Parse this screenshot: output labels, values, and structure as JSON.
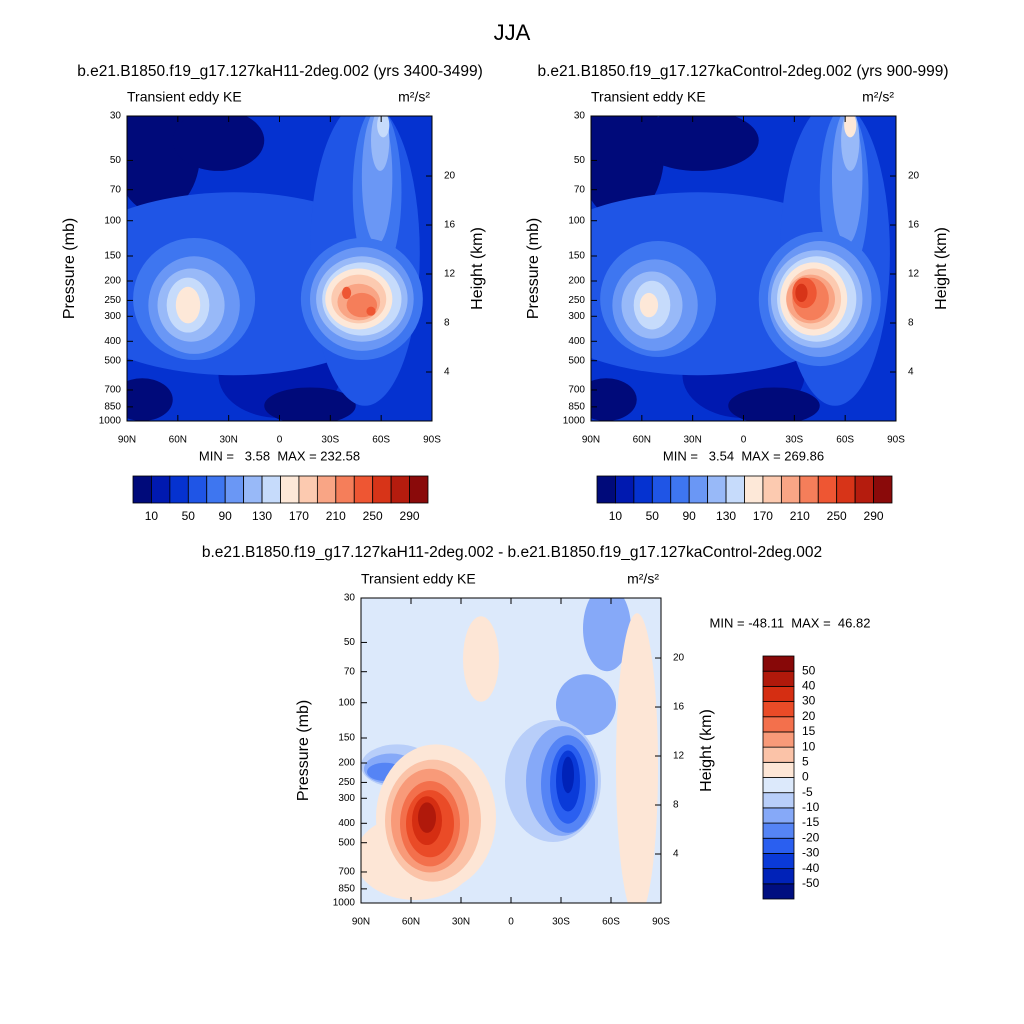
{
  "title": "JJA",
  "chart_data": [
    {
      "type": "contour",
      "title": "b.e21.B1850.f19_g17.127kaH11-2deg.002 (yrs 3400-3499)",
      "left_label": "Transient eddy KE",
      "units": "m²/s²",
      "ylabel": "Pressure (mb)",
      "y2label": "Height (km)",
      "stats": "MIN =   3.58  MAX = 232.58",
      "xlim": [
        90,
        -90
      ],
      "xticks": [
        {
          "value": 90,
          "label": "90N"
        },
        {
          "value": 60,
          "label": "60N"
        },
        {
          "value": 30,
          "label": "30N"
        },
        0,
        {
          "value": -30,
          "label": "30S"
        },
        {
          "value": -60,
          "label": "60S"
        },
        {
          "value": -90,
          "label": "90S"
        }
      ],
      "ylim": [
        1000,
        30
      ],
      "yscale": "log",
      "yticks": [
        30,
        50,
        70,
        100,
        150,
        200,
        250,
        300,
        400,
        500,
        700,
        850,
        1000
      ],
      "y2lim": [
        0,
        24.9
      ],
      "y2ticks": [
        4,
        8,
        12,
        16,
        20
      ],
      "colorbar": {
        "orientation": "horizontal",
        "lim": [
          -10,
          310
        ],
        "ticks": [
          10,
          50,
          90,
          130,
          170,
          210,
          250,
          290
        ],
        "colors": [
          "#000a7a",
          "#0019b0",
          "#0532d0",
          "#1f55e6",
          "#3e76f0",
          "#6a97f5",
          "#98b9f8",
          "#c6dbfb",
          "#fde8d8",
          "#fccab0",
          "#f9a585",
          "#f57e5a",
          "#ee5633",
          "#d73418",
          "#b51c0e",
          "#8a0a0a"
        ]
      }
    },
    {
      "type": "contour",
      "title": "b.e21.B1850.f19_g17.127kaControl-2deg.002 (yrs 900-999)",
      "left_label": "Transient eddy KE",
      "units": "m²/s²",
      "ylabel": "Pressure (mb)",
      "y2label": "Height (km)",
      "stats": "MIN =   3.54  MAX = 269.86",
      "xlim": [
        90,
        -90
      ],
      "xticks": [
        {
          "value": 90,
          "label": "90N"
        },
        {
          "value": 60,
          "label": "60N"
        },
        {
          "value": 30,
          "label": "30N"
        },
        0,
        {
          "value": -30,
          "label": "30S"
        },
        {
          "value": -60,
          "label": "60S"
        },
        {
          "value": -90,
          "label": "90S"
        }
      ],
      "ylim": [
        1000,
        30
      ],
      "yscale": "log",
      "yticks": [
        30,
        50,
        70,
        100,
        150,
        200,
        250,
        300,
        400,
        500,
        700,
        850,
        1000
      ],
      "y2lim": [
        0,
        24.9
      ],
      "y2ticks": [
        4,
        8,
        12,
        16,
        20
      ],
      "colorbar": {
        "orientation": "horizontal",
        "lim": [
          -10,
          310
        ],
        "ticks": [
          10,
          50,
          90,
          130,
          170,
          210,
          250,
          290
        ],
        "colors": [
          "#000a7a",
          "#0019b0",
          "#0532d0",
          "#1f55e6",
          "#3e76f0",
          "#6a97f5",
          "#98b9f8",
          "#c6dbfb",
          "#fde8d8",
          "#fccab0",
          "#f9a585",
          "#f57e5a",
          "#ee5633",
          "#d73418",
          "#b51c0e",
          "#8a0a0a"
        ]
      }
    },
    {
      "type": "contour",
      "title": "b.e21.B1850.f19_g17.127kaH11-2deg.002 - b.e21.B1850.f19_g17.127kaControl-2deg.002",
      "left_label": "Transient eddy KE",
      "units": "m²/s²",
      "ylabel": "Pressure (mb)",
      "y2label": "Height (km)",
      "stats": "MIN = -48.11  MAX =  46.82",
      "xlim": [
        90,
        -90
      ],
      "xticks": [
        {
          "value": 90,
          "label": "90N"
        },
        {
          "value": 60,
          "label": "60N"
        },
        {
          "value": 30,
          "label": "30N"
        },
        0,
        {
          "value": -30,
          "label": "30S"
        },
        {
          "value": -60,
          "label": "60S"
        },
        {
          "value": -90,
          "label": "90S"
        }
      ],
      "ylim": [
        1000,
        30
      ],
      "yscale": "log",
      "yticks": [
        30,
        50,
        70,
        100,
        150,
        200,
        250,
        300,
        400,
        500,
        700,
        850,
        1000
      ],
      "y2lim": [
        0,
        24.9
      ],
      "y2ticks": [
        4,
        8,
        12,
        16,
        20
      ],
      "colorbar": {
        "orientation": "vertical",
        "levels": [
          -50,
          -40,
          -30,
          -20,
          -15,
          -10,
          -5,
          0,
          5,
          10,
          15,
          20,
          30,
          40,
          50
        ],
        "colors": [
          "#000e80",
          "#0022b8",
          "#0a3ad8",
          "#2a5ff0",
          "#5584f5",
          "#86a9f8",
          "#b8cef9",
          "#dce9fb",
          "#fde6d6",
          "#fbc3a8",
          "#f89a79",
          "#f3704c",
          "#ea4b27",
          "#d52e12",
          "#b0190b",
          "#870808"
        ]
      }
    }
  ]
}
